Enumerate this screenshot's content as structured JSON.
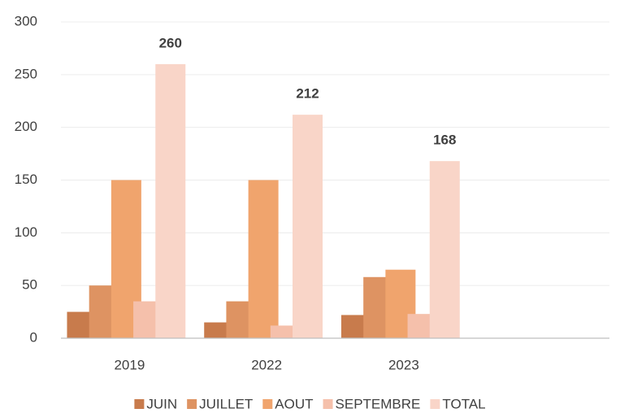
{
  "chart_data": {
    "type": "bar",
    "categories": [
      "2019",
      "2022",
      "2023",
      null
    ],
    "series": [
      {
        "name": "JUIN",
        "color": "#c87b4c",
        "values": [
          25,
          15,
          22,
          null
        ]
      },
      {
        "name": "JUILLET",
        "color": "#de9362",
        "values": [
          50,
          35,
          58,
          null
        ]
      },
      {
        "name": "AOUT",
        "color": "#f0a46d",
        "values": [
          150,
          150,
          65,
          null
        ]
      },
      {
        "name": "SEPTEMBRE",
        "color": "#f5c0ab",
        "values": [
          35,
          12,
          23,
          null
        ]
      },
      {
        "name": "TOTAL",
        "color": "#f9d5c8",
        "values": [
          260,
          212,
          168,
          null
        ],
        "data_labels": true
      }
    ],
    "ylim": [
      0,
      300
    ],
    "yticks": [
      0,
      50,
      100,
      150,
      200,
      250,
      300
    ],
    "grid": true,
    "legend": "bottom"
  }
}
